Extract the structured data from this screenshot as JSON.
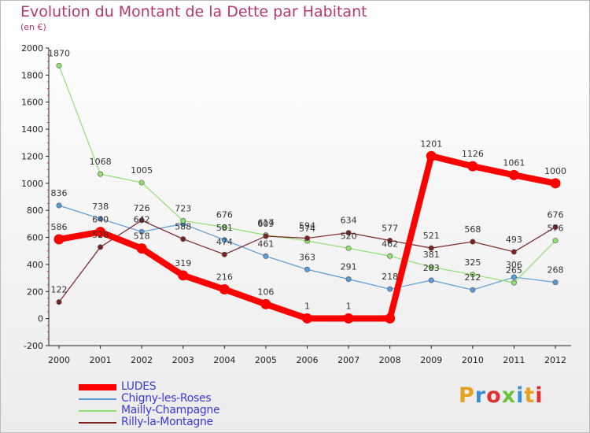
{
  "title": "Evolution du Montant de la Dette par Habitant",
  "subtitle": "(en €)",
  "logo": "Proxiti",
  "chart_data": {
    "type": "line",
    "title": "Evolution du Montant de la Dette par Habitant",
    "ylabel": "(en €)",
    "xlabel": "",
    "categories": [
      "2000",
      "2001",
      "2002",
      "2003",
      "2004",
      "2005",
      "2006",
      "2007",
      "2008",
      "2009",
      "2010",
      "2011",
      "2012"
    ],
    "ylim": [
      -200,
      2000
    ],
    "yticks": [
      -200,
      0,
      200,
      400,
      600,
      800,
      1000,
      1200,
      1400,
      1600,
      1800,
      2000
    ],
    "grid": false,
    "legend": "bottom-left",
    "series": [
      {
        "name": "LUDES",
        "color": "#ff0000",
        "values": [
          586,
          640,
          518,
          319,
          216,
          106,
          1,
          1,
          1,
          1201,
          1126,
          1061,
          1000
        ],
        "labels": [
          "586",
          "640",
          "518",
          "319",
          "216",
          "106",
          "1",
          "1",
          "",
          "1201",
          "1126",
          "1061",
          "1000"
        ]
      },
      {
        "name": "Chigny-les-Roses",
        "color": "#5b9bd5",
        "values": [
          836,
          738,
          642,
          700,
          581,
          461,
          363,
          291,
          218,
          283,
          212,
          306,
          268
        ],
        "labels": [
          "836",
          "738",
          "642",
          "",
          "581",
          "461",
          "363",
          "291",
          "218",
          "283",
          "212",
          "306",
          "268"
        ]
      },
      {
        "name": "Mailly-Champagne",
        "color": "#90e070",
        "values": [
          1870,
          1068,
          1005,
          723,
          676,
          617,
          574,
          520,
          462,
          381,
          325,
          265,
          576
        ],
        "labels": [
          "1870",
          "1068",
          "1005",
          "723",
          "676",
          "617",
          "574",
          "520",
          "462",
          "381",
          "325",
          "265",
          "576"
        ]
      },
      {
        "name": "Rilly-la-Montagne",
        "color": "#7a2222",
        "values": [
          122,
          528,
          726,
          588,
          474,
          609,
          594,
          634,
          577,
          521,
          568,
          493,
          676
        ],
        "labels": [
          "122",
          "528",
          "726",
          "588",
          "474",
          "609",
          "594",
          "634",
          "577",
          "521",
          "568",
          "493",
          "676"
        ]
      }
    ]
  },
  "legend": [
    {
      "label": "LUDES"
    },
    {
      "label": "Chigny-les-Roses"
    },
    {
      "label": "Mailly-Champagne"
    },
    {
      "label": "Rilly-la-Montagne"
    }
  ]
}
